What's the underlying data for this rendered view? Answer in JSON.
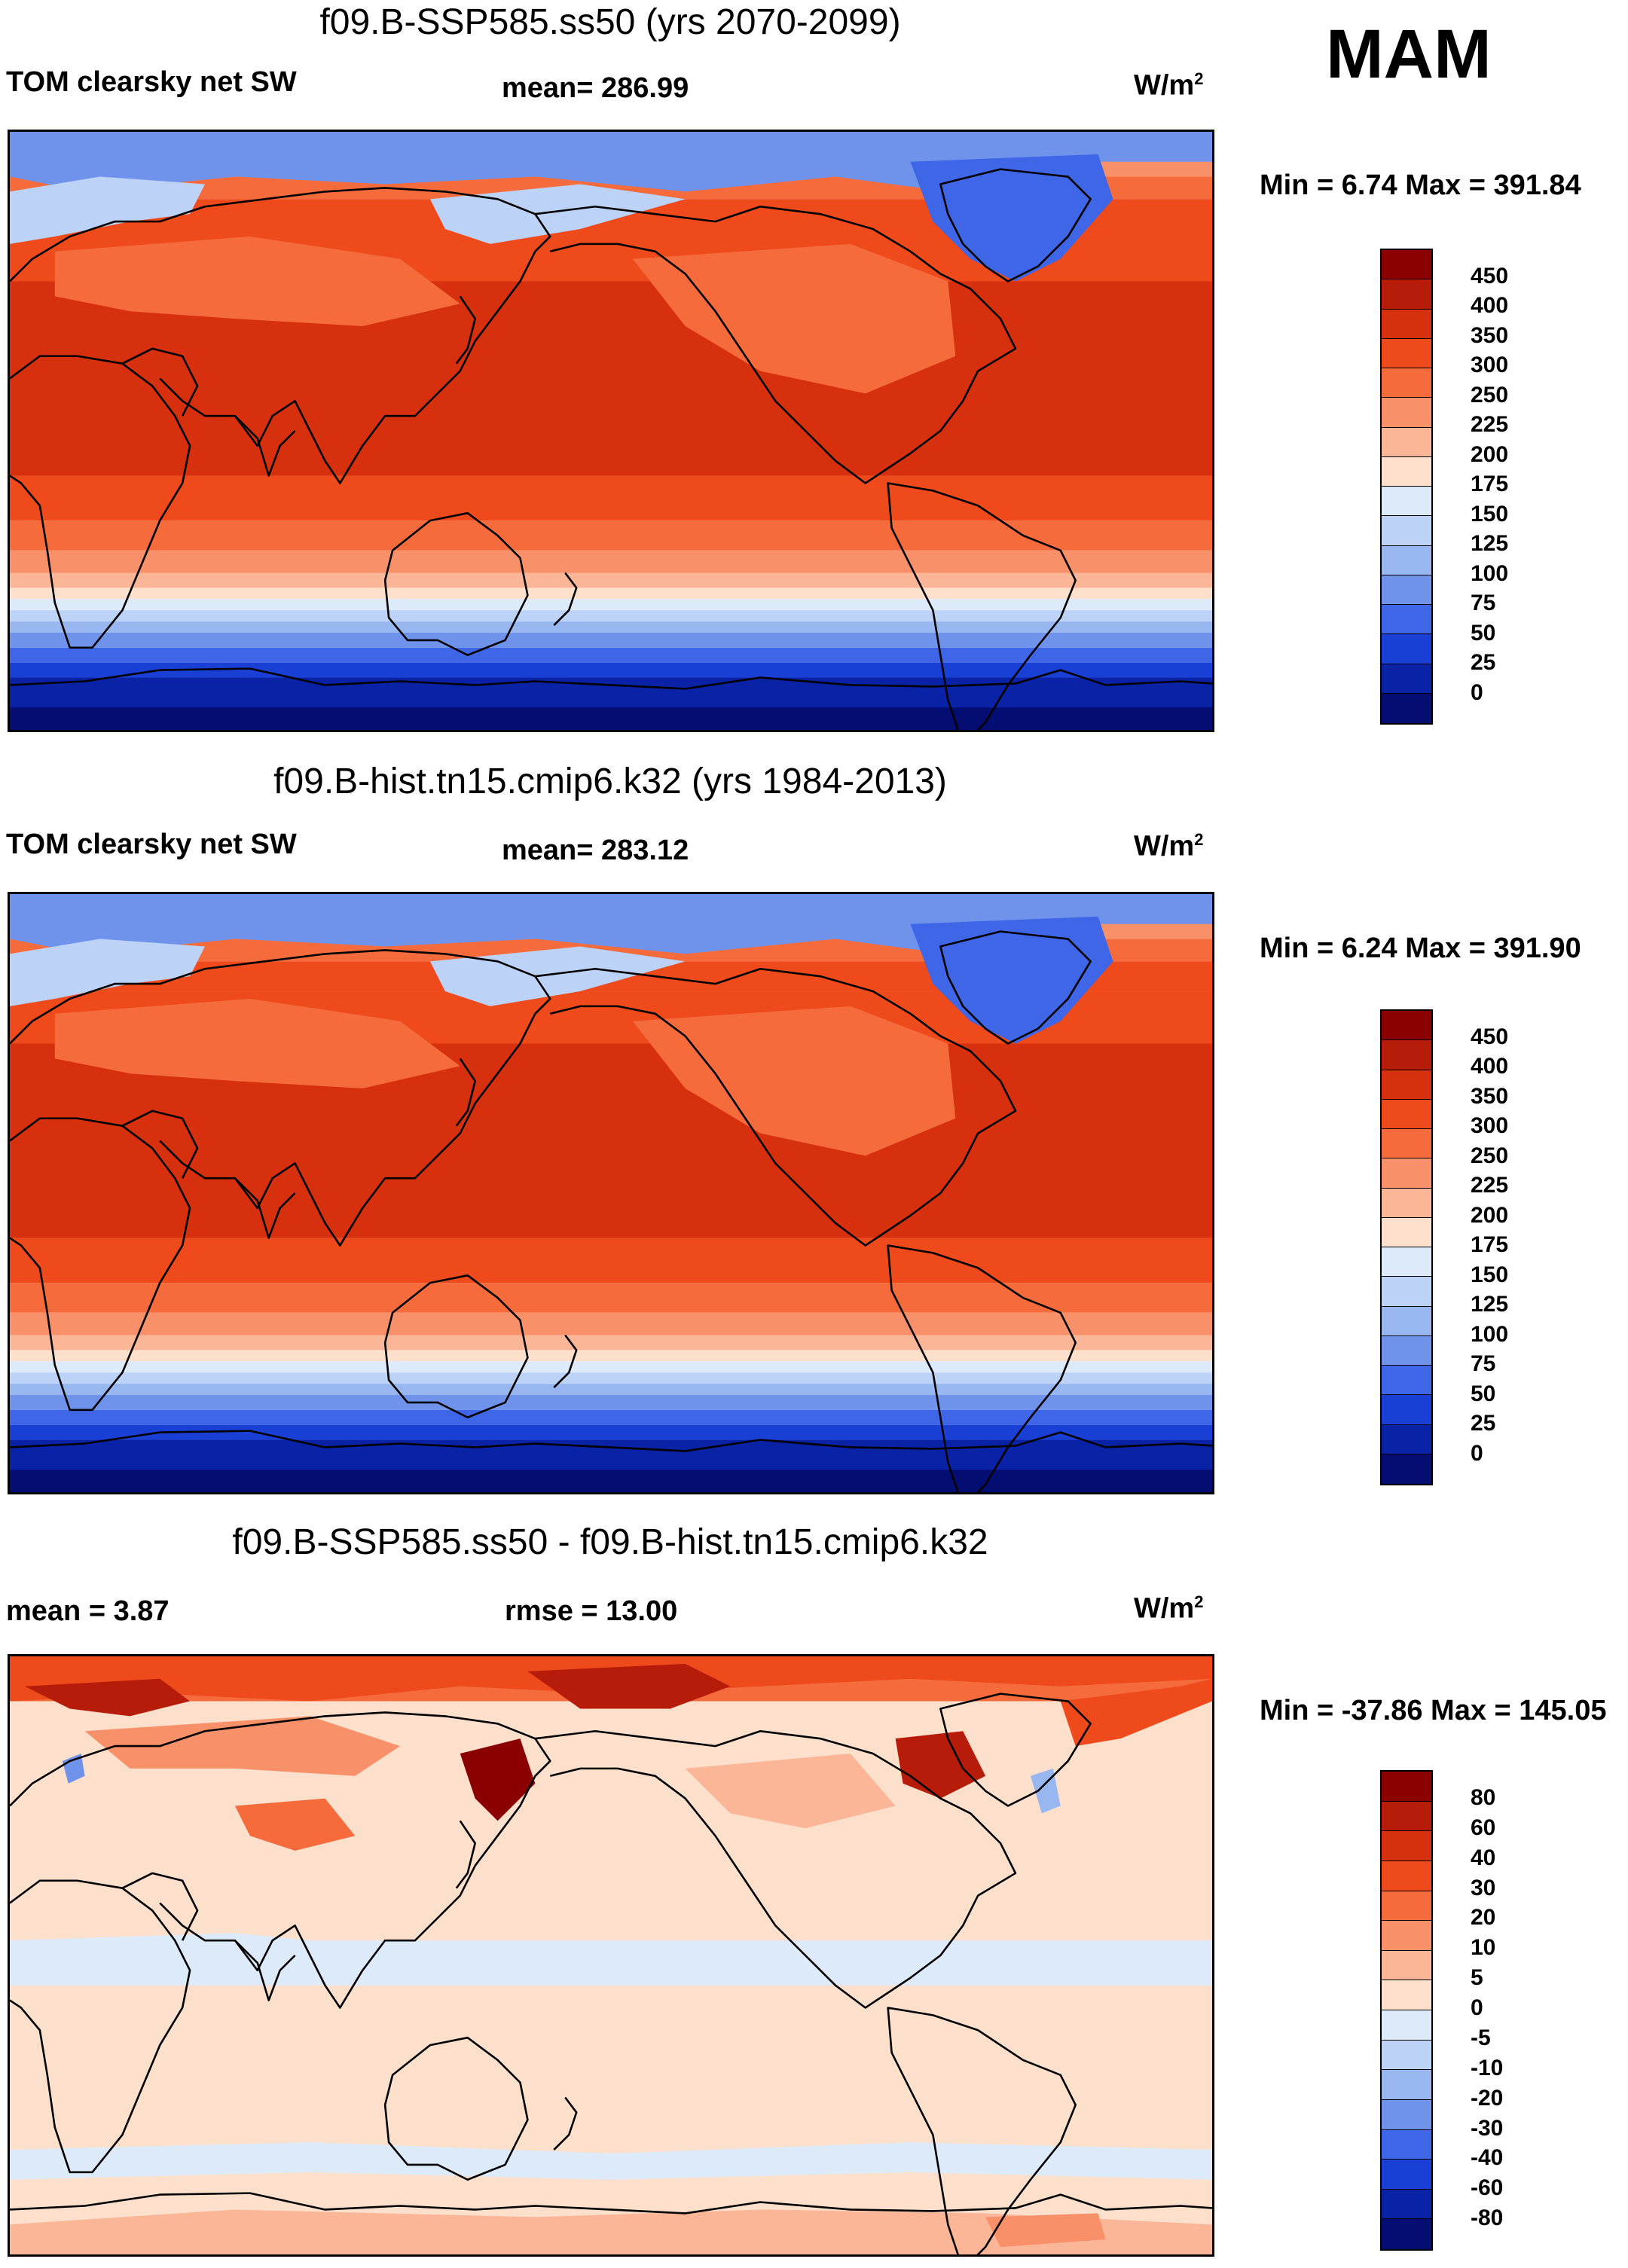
{
  "season": "MAM",
  "panels": [
    {
      "title": "f09.B-SSP585.ss50 (yrs 2070-2099)",
      "left_label": "TOM clearsky net SW",
      "center_label": "mean= 286.99",
      "units": "W/m",
      "units_sup": "2",
      "minmax": "Min =   6.74 Max = 391.84",
      "kind": "absolute"
    },
    {
      "title": "f09.B-hist.tn15.cmip6.k32 (yrs 1984-2013)",
      "left_label": "TOM clearsky net SW",
      "center_label": "mean= 283.12",
      "units": "W/m",
      "units_sup": "2",
      "minmax": "Min =   6.24 Max = 391.90",
      "kind": "absolute"
    },
    {
      "title": "f09.B-SSP585.ss50 - f09.B-hist.tn15.cmip6.k32",
      "left_label": "mean =   3.87",
      "center_label": "rmse =  13.00",
      "units": "W/m",
      "units_sup": "2",
      "minmax": "Min = -37.86 Max = 145.05",
      "kind": "difference"
    }
  ],
  "colorbar_abs": {
    "levels": [
      "450",
      "400",
      "350",
      "300",
      "250",
      "225",
      "200",
      "175",
      "150",
      "125",
      "100",
      "75",
      "50",
      "25",
      "0"
    ],
    "colors": [
      "#8b0000",
      "#b71c0a",
      "#d7300f",
      "#ee4a1c",
      "#f56b3c",
      "#f8906a",
      "#fbb597",
      "#fde0cc",
      "#ddeafa",
      "#bcd2f6",
      "#98b6f0",
      "#6f93eb",
      "#3f66e6",
      "#1a3fd4",
      "#0a22a6",
      "#040e72"
    ]
  },
  "colorbar_diff": {
    "levels": [
      "80",
      "60",
      "40",
      "30",
      "20",
      "10",
      "5",
      "0",
      "-5",
      "-10",
      "-20",
      "-30",
      "-40",
      "-60",
      "-80"
    ],
    "colors": [
      "#8b0000",
      "#b71c0a",
      "#d7300f",
      "#ee4a1c",
      "#f56b3c",
      "#f8906a",
      "#fbb597",
      "#fde0cc",
      "#ddeafa",
      "#bcd2f6",
      "#98b6f0",
      "#6f93eb",
      "#3f66e6",
      "#1a3fd4",
      "#0a22a6",
      "#040e72"
    ]
  }
}
